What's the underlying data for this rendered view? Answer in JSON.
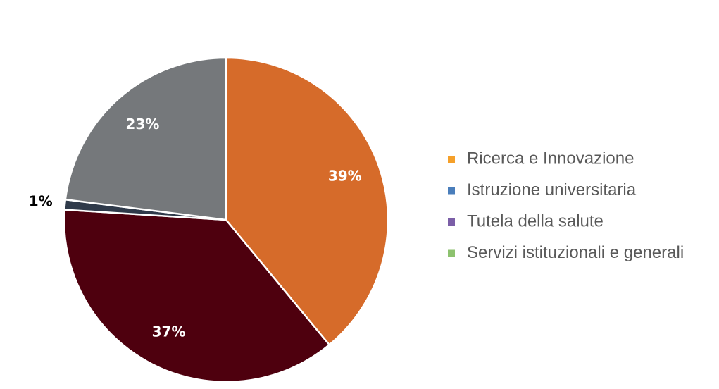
{
  "chart_data": {
    "type": "pie",
    "categories": [
      "Ricerca e Innovazione",
      "Istruzione universitaria",
      "Tutela della salute",
      "Servizi istituzionali e generali"
    ],
    "values": [
      39,
      37,
      1,
      23
    ],
    "value_labels": [
      "39%",
      "37%",
      "1%",
      "23%"
    ],
    "colors": [
      "#d66b2a",
      "#4e000e",
      "#2f3a4a",
      "#75787b"
    ],
    "legend_colors": [
      "#f5a02a",
      "#4a7ebb",
      "#7b5ea7",
      "#8dc26f"
    ],
    "legend": "right"
  }
}
